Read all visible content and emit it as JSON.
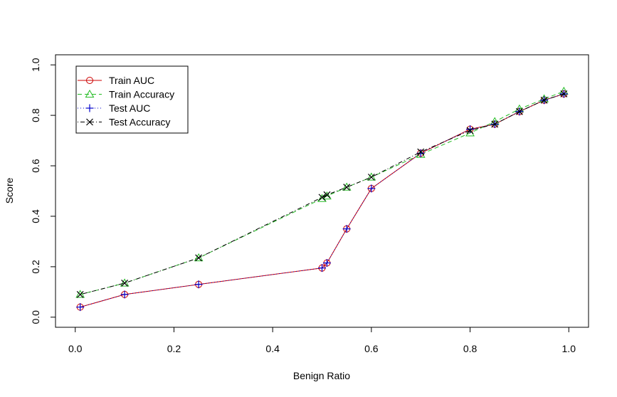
{
  "chart_data": {
    "type": "line",
    "title": "",
    "xlabel": "Benign Ratio",
    "ylabel": "Score",
    "xlim": [
      -0.04,
      1.04
    ],
    "ylim": [
      -0.04,
      1.04
    ],
    "xticks": [
      "0.0",
      "0.2",
      "0.4",
      "0.6",
      "0.8",
      "1.0"
    ],
    "yticks": [
      "0.0",
      "0.2",
      "0.4",
      "0.6",
      "0.8",
      "1.0"
    ],
    "grid": false,
    "legend_position": "top-left",
    "x": [
      0.01,
      0.1,
      0.25,
      0.5,
      0.51,
      0.55,
      0.6,
      0.7,
      0.8,
      0.85,
      0.9,
      0.95,
      0.99
    ],
    "series": [
      {
        "name": "Train AUC",
        "color": "#cc0000",
        "line": "solid",
        "marker": "circle",
        "values": [
          0.04,
          0.09,
          0.13,
          0.195,
          0.215,
          0.35,
          0.51,
          0.65,
          0.745,
          0.765,
          0.815,
          0.86,
          0.885
        ]
      },
      {
        "name": "Train Accuracy",
        "color": "#22bb22",
        "line": "dashed",
        "marker": "triangle",
        "values": [
          0.09,
          0.135,
          0.235,
          0.47,
          0.48,
          0.515,
          0.555,
          0.645,
          0.73,
          0.775,
          0.825,
          0.865,
          0.895
        ]
      },
      {
        "name": "Test AUC",
        "color": "#0000cc",
        "line": "dotted",
        "marker": "plus",
        "values": [
          0.04,
          0.09,
          0.13,
          0.195,
          0.215,
          0.35,
          0.51,
          0.65,
          0.745,
          0.765,
          0.815,
          0.86,
          0.885
        ]
      },
      {
        "name": "Test Accuracy",
        "color": "#000000",
        "line": "dotdash",
        "marker": "cross",
        "values": [
          0.09,
          0.135,
          0.235,
          0.475,
          0.485,
          0.515,
          0.555,
          0.655,
          0.74,
          0.765,
          0.815,
          0.86,
          0.885
        ]
      }
    ]
  }
}
